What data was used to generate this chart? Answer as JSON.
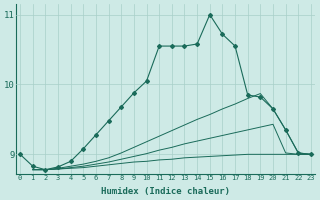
{
  "xlabel": "Humidex (Indice chaleur)",
  "ylabel": "",
  "bg_color": "#ceeae6",
  "grid_color": "#a8cfc9",
  "line_color": "#1a6b5a",
  "xmin": 0,
  "xmax": 23,
  "ymin": 8.72,
  "ymax": 11.15,
  "yticks": [
    9,
    10,
    11
  ],
  "xticks": [
    0,
    1,
    2,
    3,
    4,
    5,
    6,
    7,
    8,
    9,
    10,
    11,
    12,
    13,
    14,
    15,
    16,
    17,
    18,
    19,
    20,
    21,
    22,
    23
  ],
  "line1_x": [
    0,
    1,
    2,
    3,
    4,
    5,
    6,
    7,
    8,
    9,
    10,
    11,
    12,
    13,
    14,
    15,
    16,
    17,
    18,
    19,
    20,
    21,
    22,
    23
  ],
  "line1_y": [
    9.0,
    8.83,
    8.78,
    8.82,
    8.9,
    9.08,
    9.28,
    9.48,
    9.68,
    9.88,
    10.05,
    10.55,
    10.55,
    10.55,
    10.58,
    11.0,
    10.72,
    10.55,
    9.85,
    9.82,
    9.65,
    9.35,
    9.02,
    9.0
  ],
  "line2_x": [
    1,
    2,
    3,
    4,
    5,
    6,
    7,
    8,
    9,
    10,
    11,
    12,
    13,
    14,
    15,
    16,
    17,
    18,
    19,
    20,
    21,
    22,
    23
  ],
  "line2_y": [
    8.78,
    8.78,
    8.8,
    8.83,
    8.86,
    8.9,
    8.95,
    9.02,
    9.1,
    9.18,
    9.26,
    9.34,
    9.42,
    9.5,
    9.57,
    9.65,
    9.72,
    9.8,
    9.87,
    9.65,
    9.35,
    9.02,
    9.0
  ],
  "line3_x": [
    1,
    2,
    3,
    4,
    5,
    6,
    7,
    8,
    9,
    10,
    11,
    12,
    13,
    14,
    15,
    16,
    17,
    18,
    19,
    20,
    21,
    22,
    23
  ],
  "line3_y": [
    8.78,
    8.78,
    8.79,
    8.81,
    8.83,
    8.86,
    8.89,
    8.93,
    8.97,
    9.01,
    9.06,
    9.1,
    9.15,
    9.19,
    9.23,
    9.27,
    9.31,
    9.35,
    9.39,
    9.43,
    9.02,
    9.0,
    9.0
  ],
  "line4_x": [
    1,
    2,
    3,
    4,
    5,
    6,
    7,
    8,
    9,
    10,
    11,
    12,
    13,
    14,
    15,
    16,
    17,
    18,
    19,
    20,
    21,
    22,
    23
  ],
  "line4_y": [
    8.78,
    8.78,
    8.79,
    8.8,
    8.81,
    8.83,
    8.85,
    8.87,
    8.89,
    8.9,
    8.92,
    8.93,
    8.95,
    8.96,
    8.97,
    8.98,
    8.99,
    9.0,
    9.0,
    9.0,
    9.0,
    9.0,
    9.0
  ]
}
